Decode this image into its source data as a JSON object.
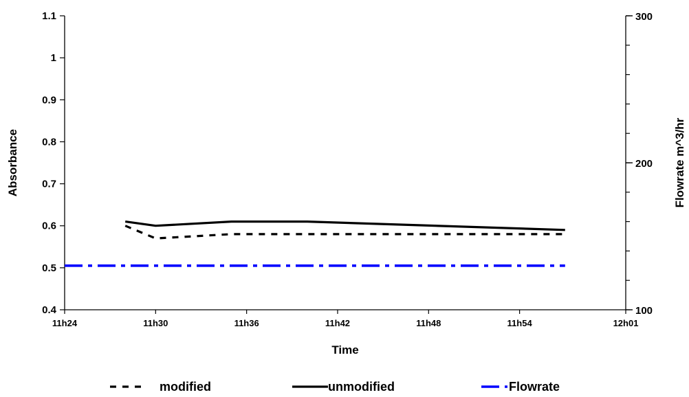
{
  "chart_data": {
    "type": "line",
    "xlabel": "Time",
    "ylabel": "Absorbance",
    "y2label": "Flowrate m^3/hr",
    "x_ticks": [
      "11h24",
      "11h30",
      "11h36",
      "11h42",
      "11h48",
      "11h54",
      "12h01"
    ],
    "xlim": [
      "11h24",
      "12h01"
    ],
    "ylim": [
      0.4,
      1.1
    ],
    "y_ticks": [
      "0.4",
      "0.5",
      "0.6",
      "0.7",
      "0.8",
      "0.9",
      "1",
      "1.1"
    ],
    "y2lim": [
      100,
      300
    ],
    "y2_ticks": [
      "100",
      "200",
      "300"
    ],
    "grid": false,
    "legend_position": "bottom",
    "series": [
      {
        "name": "modified",
        "axis": "left",
        "style": "dashed",
        "color": "#000000",
        "points": [
          {
            "t": "11h28",
            "y": 0.6
          },
          {
            "t": "11h30",
            "y": 0.57
          },
          {
            "t": "11h35",
            "y": 0.58
          },
          {
            "t": "11h40",
            "y": 0.58
          },
          {
            "t": "11h57",
            "y": 0.58
          }
        ]
      },
      {
        "name": "unmodified",
        "axis": "left",
        "style": "solid",
        "color": "#000000",
        "points": [
          {
            "t": "11h28",
            "y": 0.61
          },
          {
            "t": "11h30",
            "y": 0.6
          },
          {
            "t": "11h35",
            "y": 0.61
          },
          {
            "t": "11h40",
            "y": 0.61
          },
          {
            "t": "11h57",
            "y": 0.59
          }
        ]
      },
      {
        "name": "Flowrate",
        "axis": "right",
        "style": "dash-dot",
        "color": "#0000ff",
        "points": [
          {
            "t": "11h24",
            "y": 130
          },
          {
            "t": "11h57",
            "y": 130
          }
        ]
      }
    ]
  }
}
